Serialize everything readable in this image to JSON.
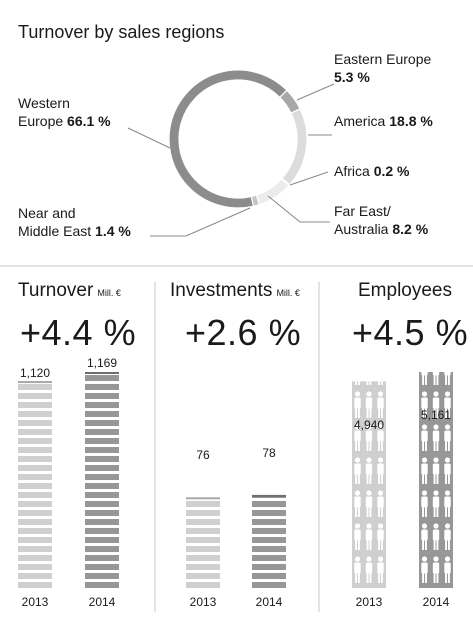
{
  "chart_data": [
    {
      "type": "pie",
      "title": "Turnover by sales regions",
      "slices": [
        {
          "label": "Eastern Europe",
          "value": 5.3,
          "value_text": "5.3 %",
          "color": "#a8a8a8"
        },
        {
          "label": "America",
          "value": 18.8,
          "value_text": "18.8 %",
          "color": "#dcdcdc"
        },
        {
          "label": "Africa",
          "value": 0.2,
          "value_text": "0.2 %",
          "color": "#8a8a8a"
        },
        {
          "label": "Far East/ Australia",
          "label_line1": "Far East/",
          "label_line2": "Australia",
          "value": 8.2,
          "value_text": "8.2 %",
          "color": "#ececec"
        },
        {
          "label": "Near and Middle East",
          "label_line1": "Near and",
          "label_line2": "Middle East",
          "value": 1.4,
          "value_text": "1.4 %",
          "color": "#c4c4c4"
        },
        {
          "label": "Western Europe",
          "label_line1": "Western",
          "label_line2": "Europe",
          "value": 66.1,
          "value_text": "66.1 %",
          "color": "#8c8c8c"
        }
      ]
    },
    {
      "type": "bar",
      "title": "Turnover",
      "unit": "Mill. €",
      "change": "+4.4 %",
      "categories": [
        "2013",
        "2014"
      ],
      "values": [
        1120,
        1169
      ],
      "value_labels": [
        "1,120",
        "1,169"
      ],
      "ylim": [
        0,
        1169
      ]
    },
    {
      "type": "bar",
      "title": "Investments",
      "unit": "Mill. €",
      "change": "+2.6 %",
      "categories": [
        "2013",
        "2014"
      ],
      "values": [
        76,
        78
      ],
      "value_labels": [
        "76",
        "78"
      ],
      "ylim": [
        0,
        181
      ]
    },
    {
      "type": "bar",
      "title": "Employees",
      "change": "+4.5 %",
      "categories": [
        "2013",
        "2014"
      ],
      "values": [
        4940,
        5161
      ],
      "value_labels": [
        "4,940",
        "5,161"
      ],
      "ylim": [
        0,
        5161
      ]
    }
  ]
}
